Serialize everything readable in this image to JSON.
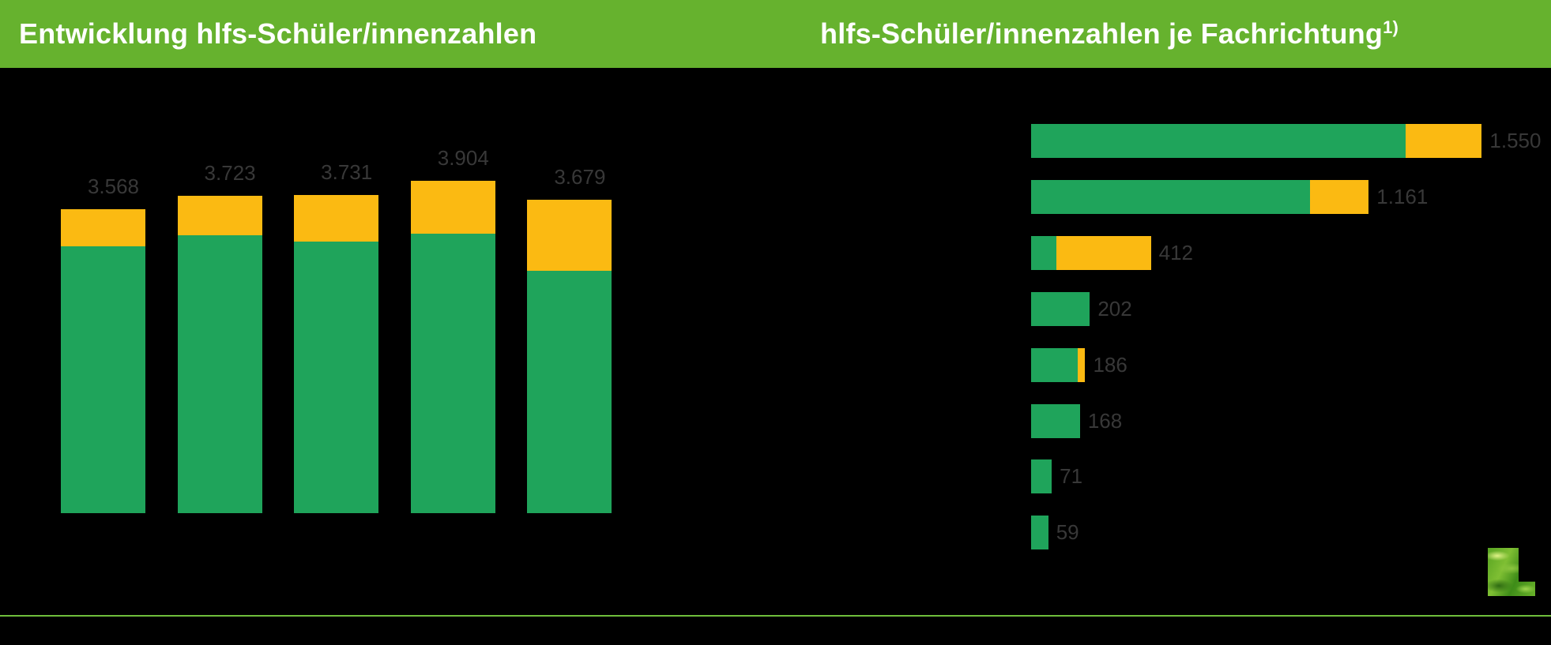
{
  "page": {
    "background": "#000000"
  },
  "header": {
    "left_title": "Entwicklung hlfs-Schüler/innenzahlen",
    "right_title": "hlfs-Schüler/innenzahlen je Fachrichtung",
    "right_title_superscript": "1)"
  },
  "colors": {
    "background": "#000000",
    "header_green": "#66B22E",
    "title_text": "#FFFFFF",
    "series_green": "#1FA45B",
    "series_yellow": "#FBBA12",
    "value_label_gray": "#383838",
    "separator_green": "#6FBE3C"
  },
  "chart_data": [
    {
      "type": "bar",
      "orientation": "vertical",
      "stacked": true,
      "title": "Entwicklung hlfs-Schüler/innenzahlen",
      "series": [
        {
          "name": "green-segment",
          "color_key": "series_green",
          "values": [
            3133,
            3265,
            3188,
            3281,
            2842
          ]
        },
        {
          "name": "yellow-segment",
          "color_key": "series_yellow",
          "values": [
            435,
            458,
            543,
            623,
            837
          ]
        }
      ],
      "totals": [
        3568,
        3723,
        3731,
        3904,
        3679
      ],
      "total_labels": [
        "3.568",
        "3.723",
        "3.731",
        "3.904",
        "3.679"
      ],
      "notes": "category axis labels and legend not visible against black background; no gridlines, no value axis shown; segment values estimated from pixel heights, totals are the printed data labels"
    },
    {
      "type": "bar",
      "orientation": "horizontal",
      "stacked": true,
      "title": "hlfs-Schüler/innenzahlen je Fachrichtung 1)",
      "series": [
        {
          "name": "green-segment",
          "color_key": "series_green",
          "values": [
            1288,
            960,
            87,
            202,
            159,
            168,
            71,
            59
          ]
        },
        {
          "name": "yellow-segment",
          "color_key": "series_yellow",
          "values": [
            262,
            201,
            325,
            0,
            27,
            0,
            0,
            0
          ]
        }
      ],
      "totals": [
        1550,
        1161,
        412,
        202,
        186,
        168,
        71,
        59
      ],
      "total_labels": [
        "1.550",
        "1.161",
        "412",
        "202",
        "186",
        "168",
        "71",
        "59"
      ],
      "notes": "category axis labels not visible against black background; no gridlines, no value axis shown; segment values estimated from pixel widths, totals are the printed data labels"
    }
  ],
  "footer": {
    "separator_line": true,
    "logo": "grass-textured L-shaped logo"
  }
}
